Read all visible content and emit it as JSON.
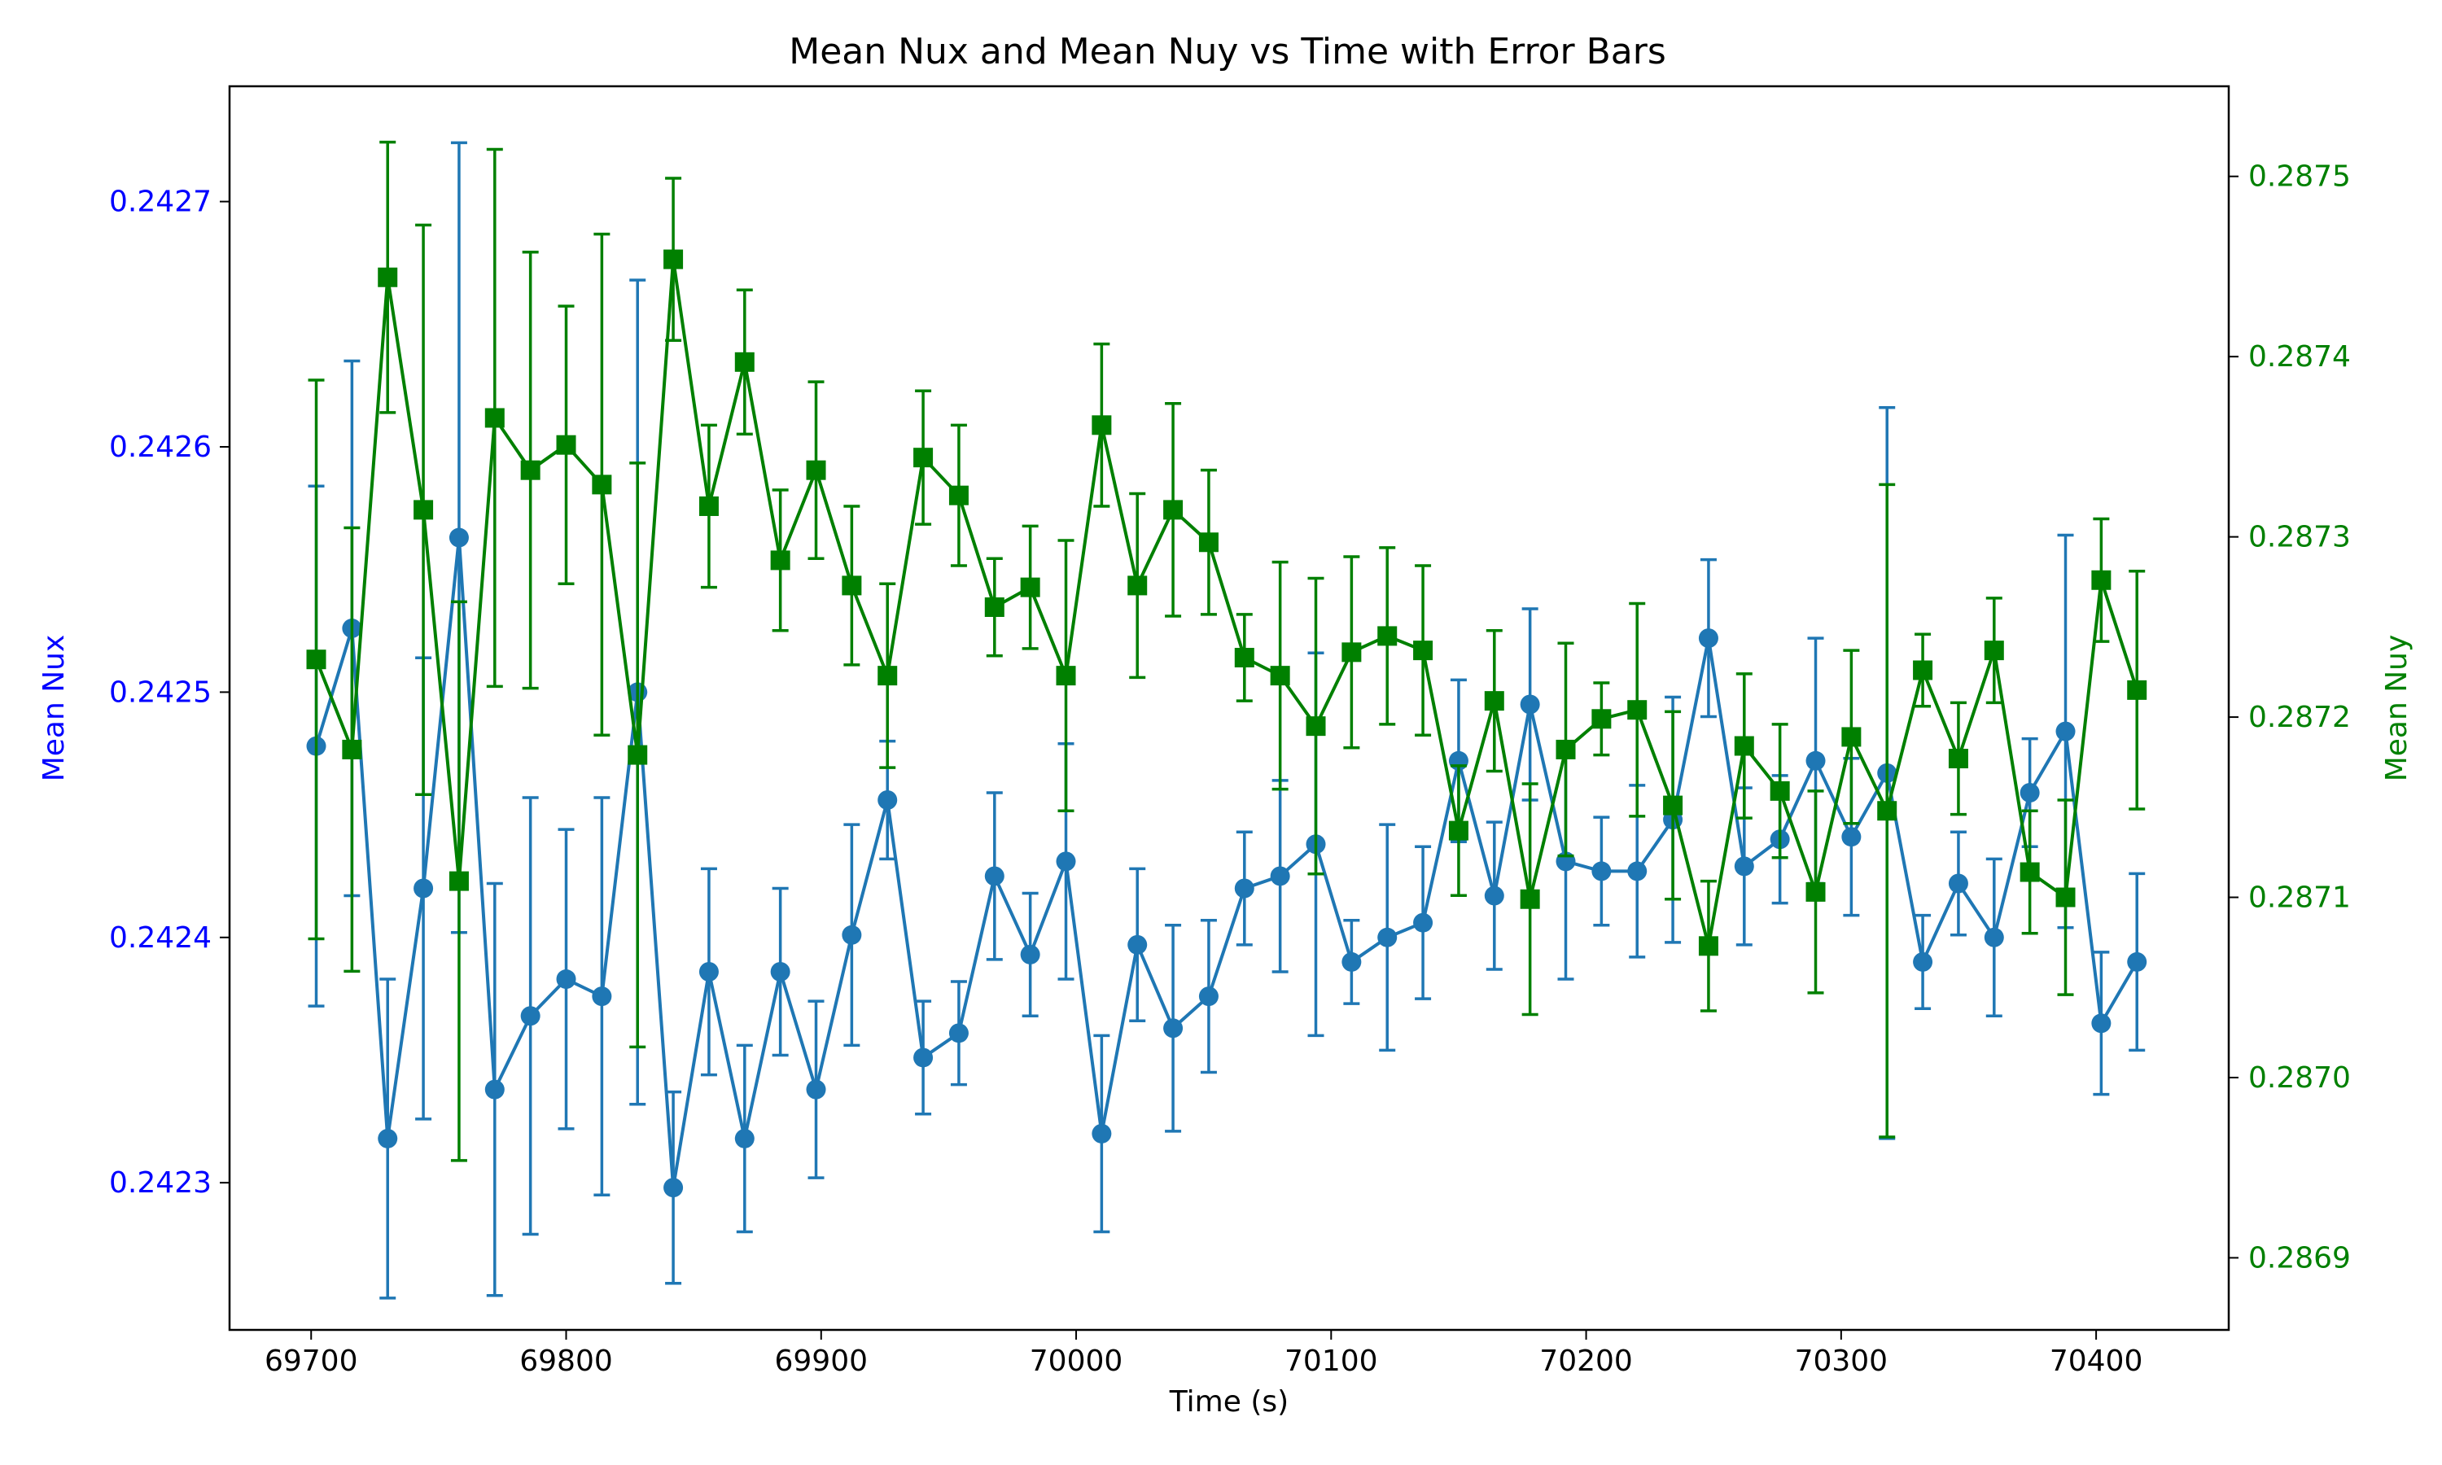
{
  "chart_data": {
    "type": "line",
    "title": "Mean Nux and Mean Nuy vs Time with Error Bars",
    "xlabel": "Time (s)",
    "x_ticks": [
      69700,
      69800,
      69900,
      70000,
      70100,
      70200,
      70300,
      70400
    ],
    "xlim": [
      69668,
      70452
    ],
    "y_left": {
      "label": "Mean Nux",
      "color": "#0000ff",
      "lim": [
        0.24224,
        0.242747
      ],
      "ticks": [
        "0.2423",
        "0.2424",
        "0.2425",
        "0.2426",
        "0.2427"
      ]
    },
    "y_right": {
      "label": "Mean Nuy",
      "color": "#008000",
      "lim": [
        0.28686,
        0.28755
      ],
      "ticks": [
        "0.2869",
        "0.2870",
        "0.2871",
        "0.2872",
        "0.2873",
        "0.2874",
        "0.2875"
      ]
    },
    "grid": false,
    "x": [
      69702,
      69716,
      69730,
      69744,
      69758,
      69772,
      69786,
      69800,
      69814,
      69828,
      69842,
      69856,
      69870,
      69884,
      69898,
      69912,
      69926,
      69940,
      69954,
      69968,
      69982,
      69996,
      70010,
      70024,
      70038,
      70052,
      70066,
      70080,
      70094,
      70108,
      70122,
      70136,
      70150,
      70164,
      70178,
      70192,
      70206,
      70220,
      70234,
      70248,
      70262,
      70276,
      70290,
      70304,
      70318,
      70332,
      70346,
      70360,
      70374,
      70388,
      70402,
      70416
    ],
    "series": [
      {
        "name": "Mean Nux",
        "axis": "left",
        "color": "#1f77b4",
        "marker": "circle",
        "values": [
          0.242478,
          0.242526,
          0.242318,
          0.24242,
          0.242563,
          0.242338,
          0.242368,
          0.242383,
          0.242376,
          0.2425,
          0.242298,
          0.242386,
          0.242318,
          0.242386,
          0.242338,
          0.242401,
          0.242456,
          0.242351,
          0.242361,
          0.242425,
          0.242393,
          0.242431,
          0.24232,
          0.242397,
          0.242363,
          0.242376,
          0.24242,
          0.242425,
          0.242438,
          0.24239,
          0.2424,
          0.242406,
          0.242472,
          0.242417,
          0.242495,
          0.242431,
          0.242427,
          0.242427,
          0.242448,
          0.242522,
          0.242429,
          0.24244,
          0.242472,
          0.242441,
          0.242467,
          0.24239,
          0.242422,
          0.2424,
          0.242459,
          0.242484,
          0.242365,
          0.24239
        ],
        "errors": [
          0.000106,
          0.000109,
          6.5e-05,
          9.4e-05,
          0.000161,
          8.4e-05,
          8.9e-05,
          6.1e-05,
          8.1e-05,
          0.000168,
          3.9e-05,
          4.2e-05,
          3.8e-05,
          3.4e-05,
          3.6e-05,
          4.5e-05,
          2.4e-05,
          2.3e-05,
          2.1e-05,
          3.4e-05,
          2.5e-05,
          4.8e-05,
          4e-05,
          3.1e-05,
          4.2e-05,
          3.1e-05,
          2.3e-05,
          3.9e-05,
          7.8e-05,
          1.7e-05,
          4.6e-05,
          3.1e-05,
          3.3e-05,
          3e-05,
          3.9e-05,
          4.8e-05,
          2.2e-05,
          3.5e-05,
          5e-05,
          3.2e-05,
          3.2e-05,
          2.6e-05,
          5e-05,
          3.2e-05,
          0.000149,
          1.9e-05,
          2.1e-05,
          3.2e-05,
          2.2e-05,
          8e-05,
          2.9e-05,
          3.6e-05
        ]
      },
      {
        "name": "Mean Nuy",
        "axis": "right",
        "color": "#008000",
        "marker": "square",
        "values": [
          0.287232,
          0.287182,
          0.287444,
          0.287315,
          0.287109,
          0.287366,
          0.287337,
          0.287351,
          0.287329,
          0.287179,
          0.287454,
          0.287317,
          0.287397,
          0.287287,
          0.287337,
          0.287273,
          0.287223,
          0.287344,
          0.287323,
          0.287261,
          0.287272,
          0.287223,
          0.287362,
          0.287273,
          0.287315,
          0.287297,
          0.287233,
          0.287223,
          0.287195,
          0.287236,
          0.287245,
          0.287237,
          0.287137,
          0.287209,
          0.287099,
          0.287182,
          0.287199,
          0.287204,
          0.287151,
          0.287073,
          0.287184,
          0.287159,
          0.287103,
          0.287189,
          0.287148,
          0.287226,
          0.287177,
          0.287237,
          0.287114,
          0.2871,
          0.287276,
          0.287215
        ],
        "errors": [
          0.000155,
          0.000123,
          7.5e-05,
          0.000158,
          0.000155,
          0.000149,
          0.000121,
          7.7e-05,
          0.000139,
          0.000162,
          4.5e-05,
          4.5e-05,
          4e-05,
          3.9e-05,
          4.9e-05,
          4.4e-05,
          5.1e-05,
          3.7e-05,
          3.9e-05,
          2.7e-05,
          3.4e-05,
          7.5e-05,
          4.5e-05,
          5.1e-05,
          5.9e-05,
          4e-05,
          2.4e-05,
          6.3e-05,
          8.2e-05,
          5.3e-05,
          4.9e-05,
          4.7e-05,
          3.6e-05,
          3.9e-05,
          6.4e-05,
          5.9e-05,
          2e-05,
          5.9e-05,
          5.2e-05,
          3.6e-05,
          4e-05,
          3.7e-05,
          5.6e-05,
          4.8e-05,
          0.000181,
          2e-05,
          3.1e-05,
          2.9e-05,
          3.4e-05,
          5.4e-05,
          3.4e-05,
          6.6e-05
        ]
      }
    ]
  }
}
